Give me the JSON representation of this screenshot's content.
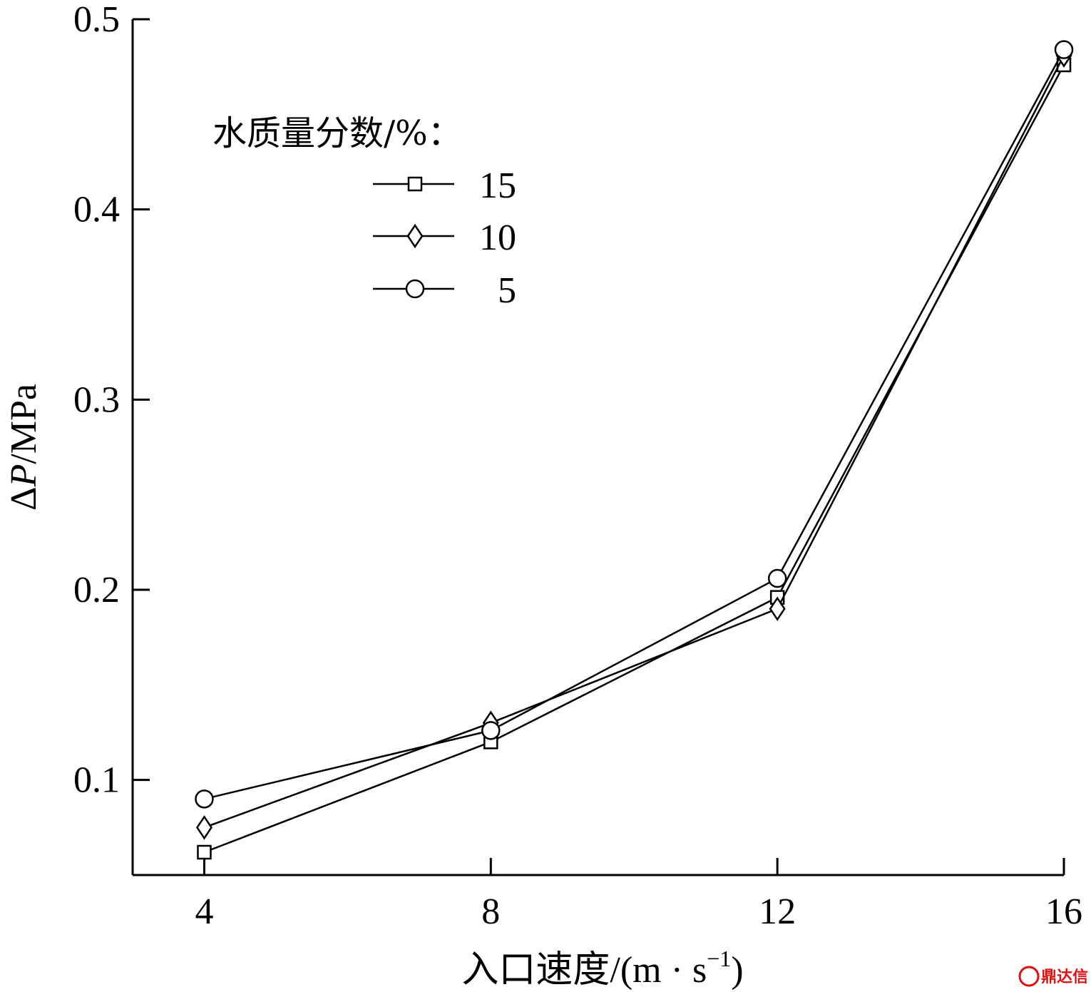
{
  "chart_data": {
    "type": "line",
    "xlabel_parts": [
      "入口速度/(m · s",
      "−1",
      ")"
    ],
    "ylabel_parts": [
      "Δ",
      "P",
      "/MPa"
    ],
    "x": [
      4,
      8,
      12,
      16
    ],
    "xlim": [
      3,
      16
    ],
    "ylim": [
      0.05,
      0.5
    ],
    "xticks": [
      4,
      8,
      12,
      16
    ],
    "yticks": [
      0.1,
      0.2,
      0.3,
      0.4,
      0.5
    ],
    "ytick_labels": [
      "0.1",
      "0.2",
      "0.3",
      "0.4",
      "0.5"
    ],
    "legend_title": "水质量分数/%：",
    "legend_placement": "upper-left",
    "series": [
      {
        "name": "15",
        "marker": "square",
        "values": [
          0.062,
          0.12,
          0.196,
          0.476
        ]
      },
      {
        "name": "10",
        "marker": "diamond",
        "values": [
          0.075,
          0.13,
          0.19,
          0.481
        ]
      },
      {
        "name": "5",
        "marker": "circle",
        "values": [
          0.09,
          0.126,
          0.206,
          0.484
        ]
      }
    ],
    "grid": false,
    "line_color": "#000000"
  },
  "watermark": "鼎达信"
}
